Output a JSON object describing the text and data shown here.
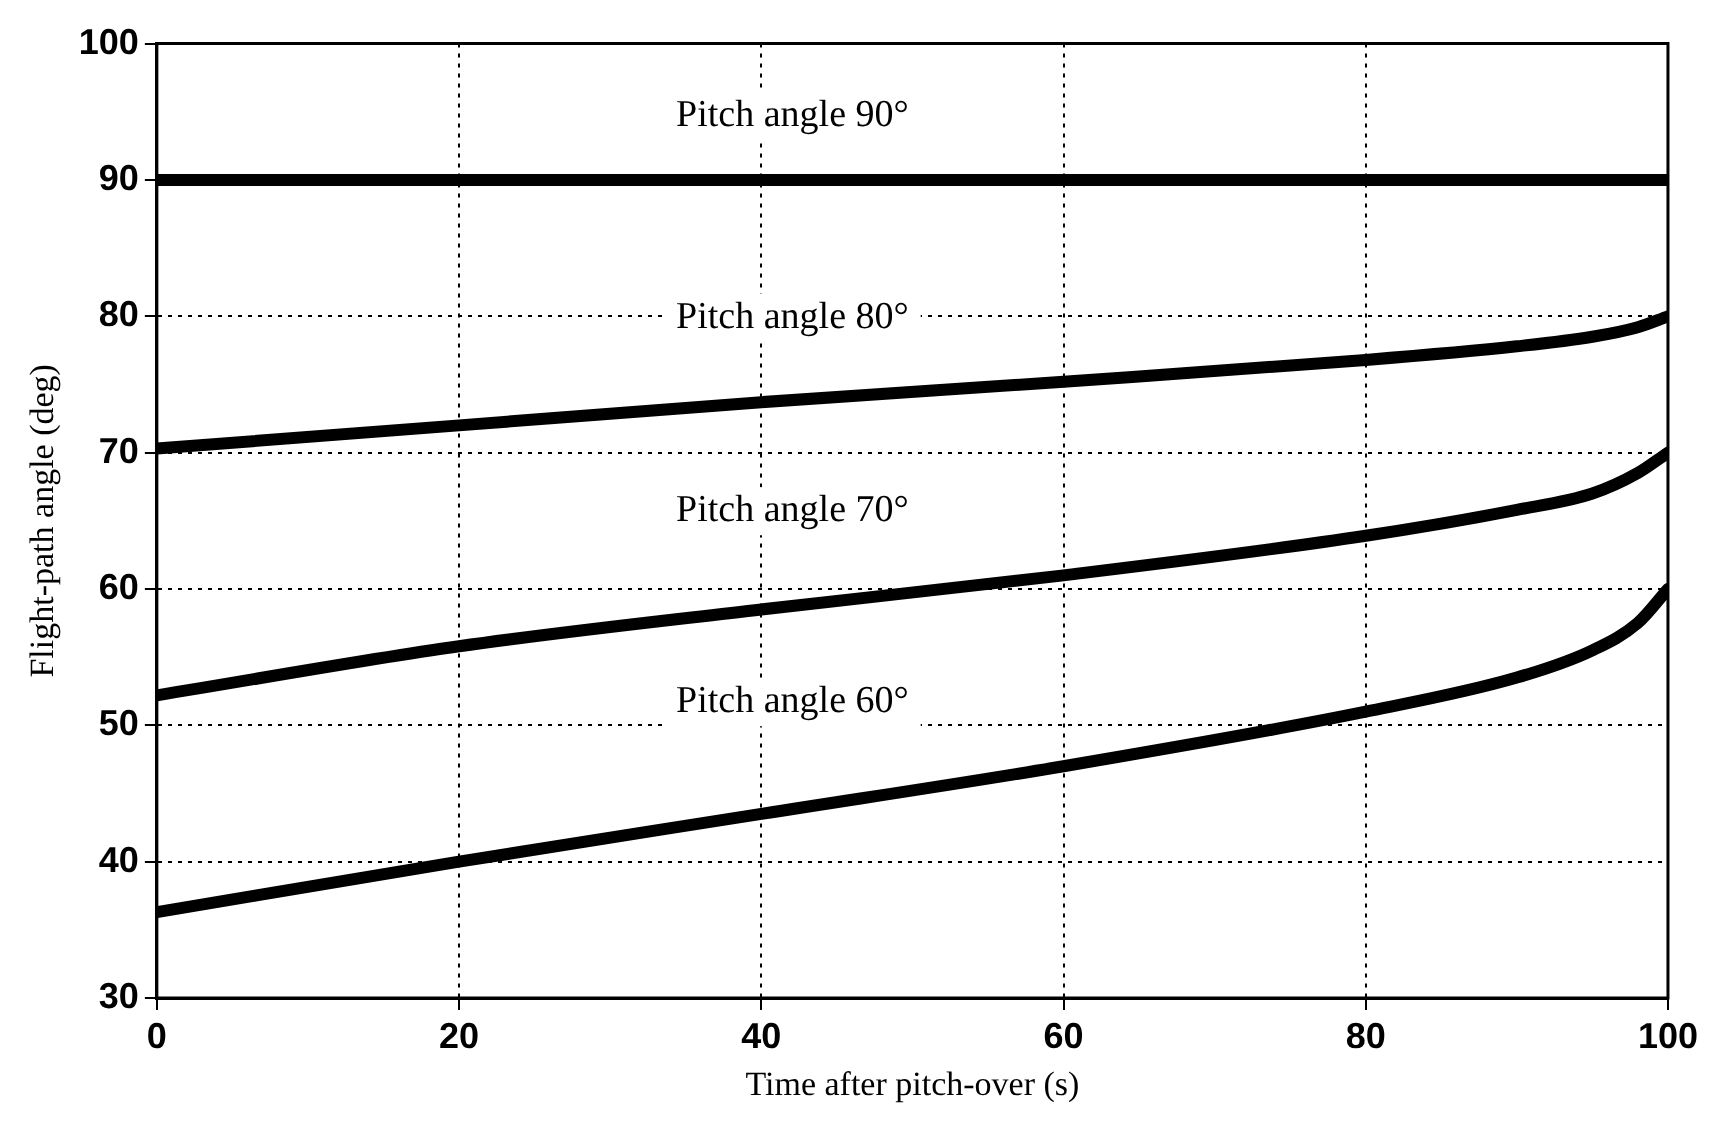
{
  "chart_data": {
    "type": "line",
    "xlabel": "Time after pitch-over (s)",
    "ylabel": "Flight-path angle (deg)",
    "xlim": [
      0,
      100
    ],
    "xticks": [
      0,
      20,
      40,
      60,
      80,
      100
    ],
    "ylim": [
      30,
      100
    ],
    "yticks": [
      30,
      40,
      50,
      60,
      70,
      80,
      90,
      100
    ],
    "grid": true,
    "legend": false,
    "marker": "none",
    "line_style": "solid",
    "x": [
      0,
      20,
      40,
      60,
      80,
      90,
      95,
      98,
      100
    ],
    "series": [
      {
        "name": "Pitch angle 90°",
        "color": "#000000",
        "values": [
          90,
          90,
          90,
          90,
          90,
          90,
          90,
          90,
          90
        ]
      },
      {
        "name": "Pitch angle 80°",
        "color": "#000000",
        "values": [
          70.3,
          72,
          73.7,
          75.2,
          76.8,
          77.8,
          78.5,
          79.2,
          80
        ]
      },
      {
        "name": "Pitch angle 70°",
        "color": "#000000",
        "values": [
          52.2,
          55.8,
          58.5,
          61,
          63.9,
          65.8,
          67,
          68.5,
          70
        ]
      },
      {
        "name": "Pitch angle 60°",
        "color": "#000000",
        "values": [
          36.3,
          40,
          43.5,
          47,
          51,
          53.5,
          55.5,
          57.5,
          60
        ]
      }
    ]
  }
}
